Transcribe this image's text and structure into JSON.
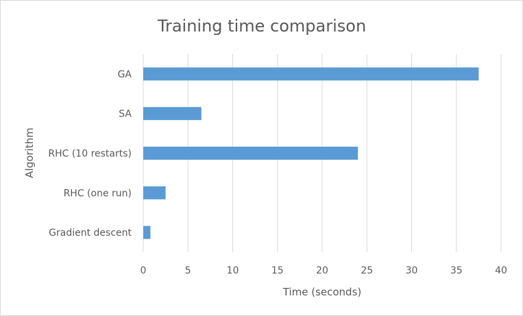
{
  "chart_data": {
    "type": "bar",
    "orientation": "horizontal",
    "title": "Training time comparison",
    "xlabel": "Time (seconds)",
    "ylabel": "Algorithm",
    "categories": [
      "GA",
      "SA",
      "RHC (10 restarts)",
      "RHC (one run)",
      "Gradient descent"
    ],
    "values": [
      37.5,
      6.5,
      24.0,
      2.5,
      0.8
    ],
    "xlim": [
      0,
      40
    ],
    "xticks": [
      "0",
      "5",
      "10",
      "15",
      "20",
      "25",
      "30",
      "35",
      "40"
    ],
    "grid": "vertical",
    "legend": "none",
    "bar_color": "#5b9bd5",
    "grid_color": "#d9d9d9"
  }
}
